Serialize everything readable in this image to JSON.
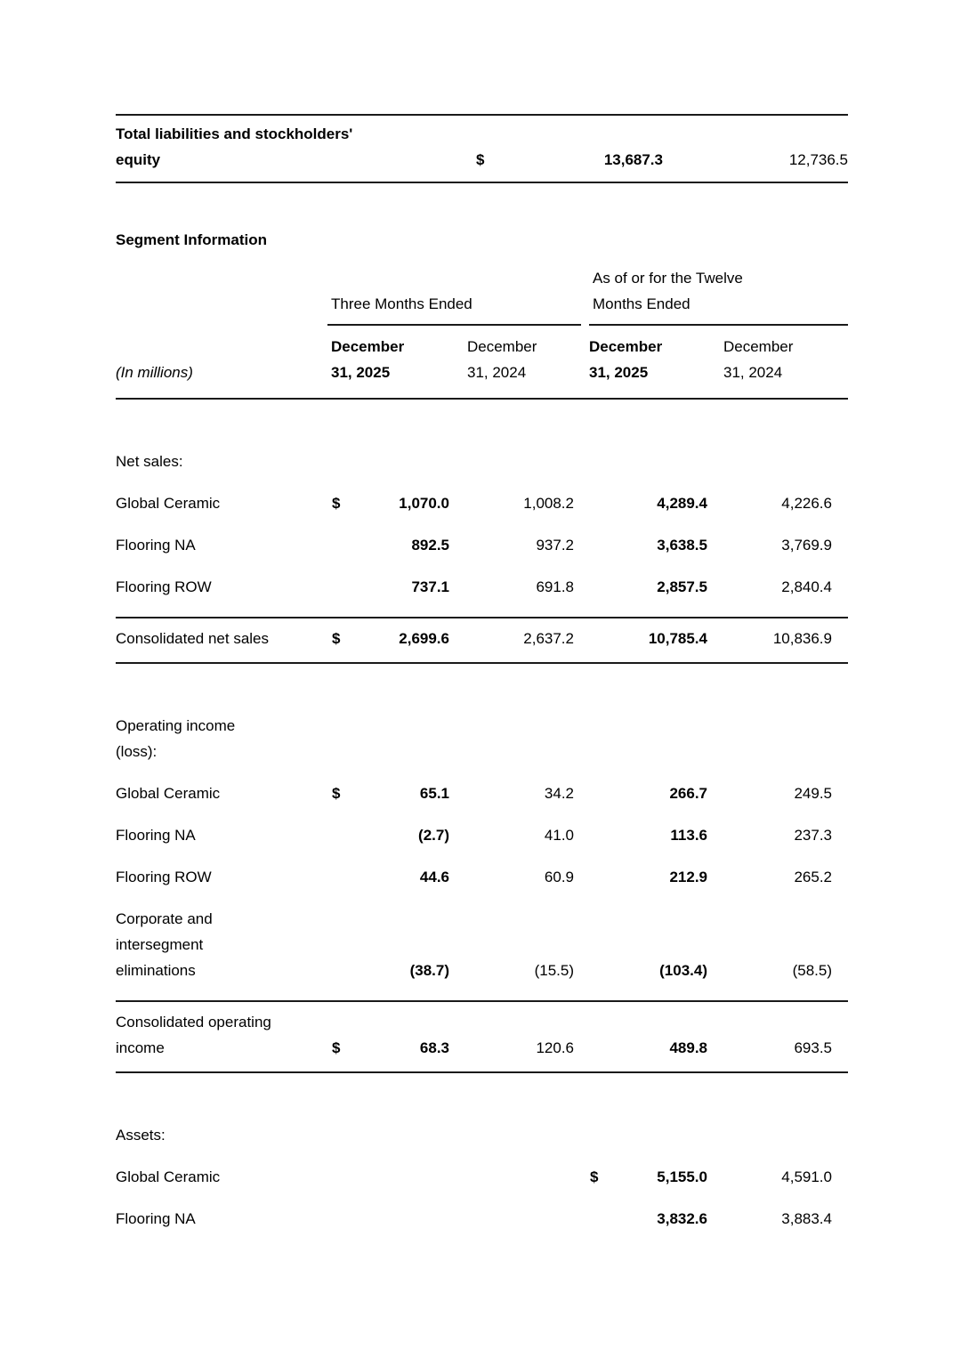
{
  "top_table": {
    "label": "Total liabilities and stockholders' equity",
    "currency": "$",
    "v_2025": "13,687.3",
    "v_2024": "12,736.5"
  },
  "section_title": "Segment Information",
  "seg": {
    "in_millions": "(In millions)",
    "group1": {
      "label": "Three Months Ended",
      "col1": "December 31, 2025",
      "col2": "December 31, 2024"
    },
    "group2": {
      "label": "As of or for the Twelve Months Ended",
      "col1": "December 31, 2025",
      "col2": "December 31, 2024"
    },
    "sections": [
      {
        "heading": "Net sales:",
        "rows": [
          {
            "label": "Global Ceramic",
            "d1": "$",
            "v1": "1,070.0",
            "v2": "1,008.2",
            "d2": "",
            "v3": "4,289.4",
            "v4": "4,226.6"
          },
          {
            "label": "Flooring NA",
            "d1": "",
            "v1": "892.5",
            "v2": "937.2",
            "d2": "",
            "v3": "3,638.5",
            "v4": "3,769.9"
          },
          {
            "label": "Flooring ROW",
            "d1": "",
            "v1": "737.1",
            "v2": "691.8",
            "d2": "",
            "v3": "2,857.5",
            "v4": "2,840.4"
          }
        ],
        "total": {
          "label": "Consolidated net sales",
          "d1": "$",
          "v1": "2,699.6",
          "v2": "2,637.2",
          "d2": "",
          "v3": "10,785.4",
          "v4": "10,836.9"
        }
      },
      {
        "heading": "Operating income (loss):",
        "rows": [
          {
            "label": "Global Ceramic",
            "d1": "$",
            "v1": "65.1",
            "v2": "34.2",
            "d2": "",
            "v3": "266.7",
            "v4": "249.5"
          },
          {
            "label": "Flooring NA",
            "d1": "",
            "v1": "(2.7)",
            "v2": "41.0",
            "d2": "",
            "v3": "113.6",
            "v4": "237.3"
          },
          {
            "label": "Flooring ROW",
            "d1": "",
            "v1": "44.6",
            "v2": "60.9",
            "d2": "",
            "v3": "212.9",
            "v4": "265.2"
          },
          {
            "label": "Corporate and intersegment eliminations",
            "d1": "",
            "v1": "(38.7)",
            "v2": "(15.5)",
            "d2": "",
            "v3": "(103.4)",
            "v4": "(58.5)"
          }
        ],
        "total": {
          "label": "Consolidated operating income",
          "d1": "$",
          "v1": "68.3",
          "v2": "120.6",
          "d2": "",
          "v3": "489.8",
          "v4": "693.5"
        }
      },
      {
        "heading": "Assets:",
        "rows": [
          {
            "label": "Global Ceramic",
            "d1": "",
            "v1": "",
            "v2": "",
            "d2": "$",
            "v3": "5,155.0",
            "v4": "4,591.0"
          },
          {
            "label": "Flooring NA",
            "d1": "",
            "v1": "",
            "v2": "",
            "d2": "",
            "v3": "3,832.6",
            "v4": "3,883.4"
          }
        ]
      }
    ]
  }
}
